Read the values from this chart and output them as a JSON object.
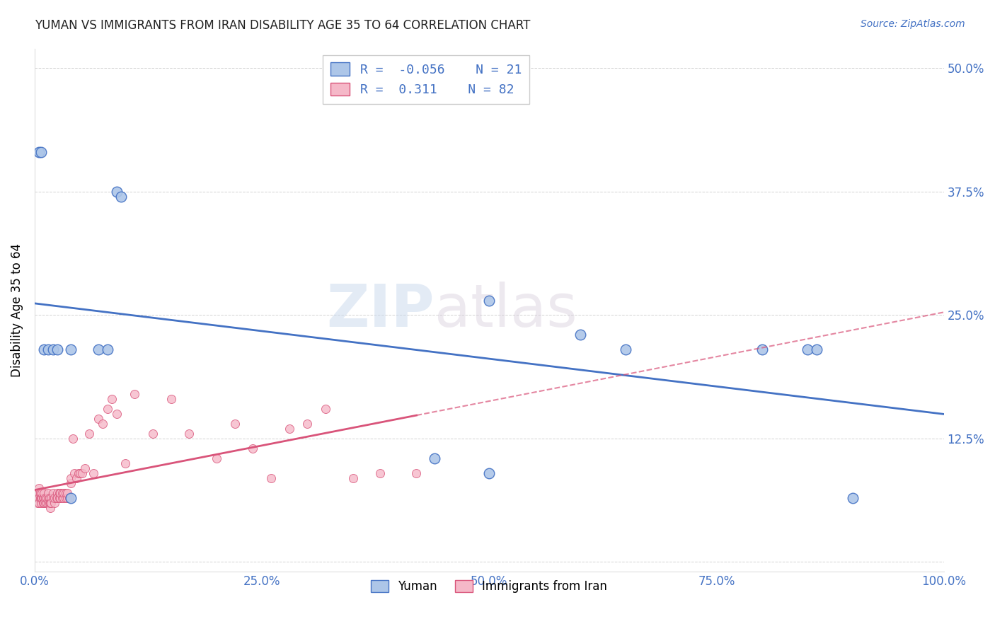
{
  "title": "YUMAN VS IMMIGRANTS FROM IRAN DISABILITY AGE 35 TO 64 CORRELATION CHART",
  "source": "Source: ZipAtlas.com",
  "ylabel": "Disability Age 35 to 64",
  "legend_label_1": "Yuman",
  "legend_label_2": "Immigrants from Iran",
  "R1": -0.056,
  "N1": 21,
  "R2": 0.311,
  "N2": 82,
  "color_blue": "#adc6e8",
  "color_pink": "#f5b8c8",
  "line_blue": "#4472c4",
  "line_pink": "#d9547a",
  "background": "#ffffff",
  "watermark_part1": "ZIP",
  "watermark_part2": "atlas",
  "xlim": [
    0.0,
    1.0
  ],
  "ylim": [
    -0.01,
    0.52
  ],
  "xticks": [
    0.0,
    0.25,
    0.5,
    0.75,
    1.0
  ],
  "yticks": [
    0.0,
    0.125,
    0.25,
    0.375,
    0.5
  ],
  "xticklabels": [
    "0.0%",
    "25.0%",
    "50.0%",
    "75.0%",
    "100.0%"
  ],
  "yticklabels_right": [
    "",
    "12.5%",
    "25.0%",
    "37.5%",
    "50.0%"
  ],
  "blue_x": [
    0.005,
    0.007,
    0.09,
    0.095,
    0.01,
    0.015,
    0.02,
    0.025,
    0.04,
    0.07,
    0.08,
    0.44,
    0.5,
    0.5,
    0.6,
    0.65,
    0.8,
    0.85,
    0.86,
    0.04,
    0.9
  ],
  "blue_y": [
    0.415,
    0.415,
    0.375,
    0.37,
    0.215,
    0.215,
    0.215,
    0.215,
    0.215,
    0.215,
    0.215,
    0.105,
    0.265,
    0.09,
    0.23,
    0.215,
    0.215,
    0.215,
    0.215,
    0.065,
    0.065
  ],
  "pink_x": [
    0.003,
    0.003,
    0.004,
    0.005,
    0.005,
    0.005,
    0.005,
    0.006,
    0.006,
    0.007,
    0.007,
    0.008,
    0.008,
    0.009,
    0.009,
    0.01,
    0.01,
    0.01,
    0.012,
    0.012,
    0.013,
    0.013,
    0.015,
    0.015,
    0.015,
    0.016,
    0.016,
    0.017,
    0.017,
    0.018,
    0.018,
    0.02,
    0.02,
    0.022,
    0.022,
    0.024,
    0.025,
    0.025,
    0.027,
    0.027,
    0.028,
    0.028,
    0.03,
    0.03,
    0.032,
    0.032,
    0.034,
    0.034,
    0.036,
    0.036,
    0.038,
    0.04,
    0.04,
    0.042,
    0.044,
    0.046,
    0.048,
    0.05,
    0.052,
    0.055,
    0.06,
    0.065,
    0.07,
    0.075,
    0.08,
    0.085,
    0.09,
    0.1,
    0.11,
    0.13,
    0.15,
    0.17,
    0.2,
    0.22,
    0.24,
    0.26,
    0.28,
    0.3,
    0.32,
    0.35,
    0.38,
    0.42
  ],
  "pink_y": [
    0.07,
    0.06,
    0.065,
    0.07,
    0.075,
    0.065,
    0.06,
    0.065,
    0.07,
    0.06,
    0.065,
    0.065,
    0.07,
    0.065,
    0.06,
    0.065,
    0.07,
    0.06,
    0.06,
    0.065,
    0.06,
    0.065,
    0.065,
    0.07,
    0.06,
    0.06,
    0.065,
    0.055,
    0.06,
    0.065,
    0.06,
    0.065,
    0.07,
    0.06,
    0.065,
    0.065,
    0.07,
    0.065,
    0.065,
    0.07,
    0.065,
    0.07,
    0.065,
    0.07,
    0.065,
    0.07,
    0.065,
    0.07,
    0.065,
    0.07,
    0.065,
    0.08,
    0.085,
    0.125,
    0.09,
    0.085,
    0.09,
    0.09,
    0.09,
    0.095,
    0.13,
    0.09,
    0.145,
    0.14,
    0.155,
    0.165,
    0.15,
    0.1,
    0.17,
    0.13,
    0.165,
    0.13,
    0.105,
    0.14,
    0.115,
    0.085,
    0.135,
    0.14,
    0.155,
    0.085,
    0.09,
    0.09
  ]
}
